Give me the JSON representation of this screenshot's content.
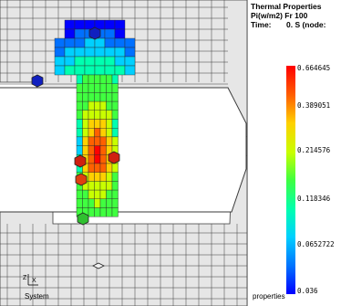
{
  "legend": {
    "title": "Thermal Properties",
    "line2": "Pi(w/m2) Fr 100",
    "time_label": "Time:",
    "time_value": "0. S (node:",
    "ticks": [
      "0.664645",
      "0.389051",
      "0.214576",
      "0.118346",
      "0.0652722",
      "0.036"
    ],
    "footer": "properties",
    "colors": [
      "#0000ff",
      "#0070ff",
      "#00d0ff",
      "#00ffb0",
      "#40ff40",
      "#c8ff00",
      "#ffd000",
      "#ff6000",
      "#ff0000"
    ]
  },
  "axes": {
    "y_label": "Z",
    "x_label": "X",
    "system_label": "System"
  },
  "colors": {
    "mesh_fill": "#e6e6e6",
    "mesh_line": "#3a3a3a",
    "background": "#ffffff"
  }
}
